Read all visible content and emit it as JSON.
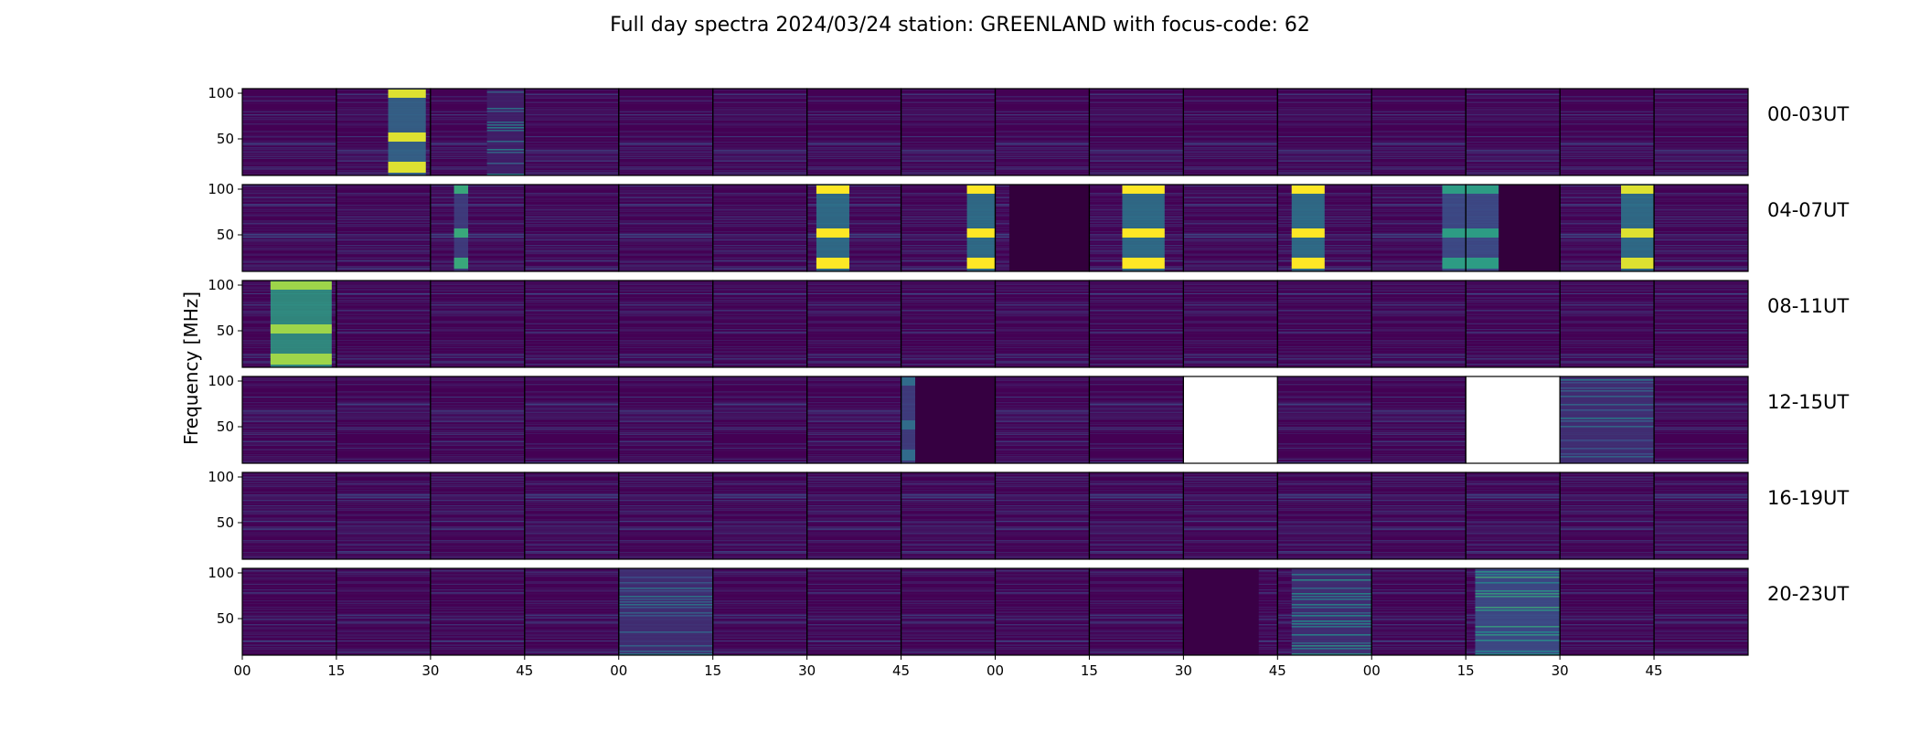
{
  "chart_data": {
    "type": "heatmap",
    "title": "Full day spectra 2024/03/24 station: GREENLAND with focus-code: 62",
    "ylabel": "Frequency [MHz]",
    "xlabel": "",
    "y_ticks": [
      "100",
      "50"
    ],
    "y_tick_values": [
      100,
      50
    ],
    "ylim": [
      10,
      105
    ],
    "x_tick_labels": [
      "00",
      "15",
      "30",
      "45",
      "00",
      "15",
      "30",
      "45",
      "00",
      "15",
      "30",
      "45",
      "00",
      "15",
      "30",
      "45"
    ],
    "panels_per_row": 16,
    "colormap": [
      "#440154",
      "#3b528b",
      "#21918c",
      "#5ec962",
      "#fde725"
    ],
    "rows": [
      {
        "label": "00-03UT",
        "features": [
          {
            "panel": 1,
            "from": 0.55,
            "to": 0.95,
            "band_level": 0.95,
            "bg_level": 0.35,
            "banded": true
          },
          {
            "panel": 2,
            "from": 0.6,
            "to": 1.0,
            "band_level": 0.3,
            "bg_level": 0.1,
            "banded": false
          }
        ],
        "missing": []
      },
      {
        "label": "04-07UT",
        "features": [
          {
            "panel": 2,
            "from": 0.25,
            "to": 0.4,
            "band_level": 0.6,
            "bg_level": 0.2,
            "banded": true
          },
          {
            "panel": 6,
            "from": 0.1,
            "to": 0.45,
            "band_level": 1.0,
            "bg_level": 0.4,
            "banded": true
          },
          {
            "panel": 7,
            "from": 0.7,
            "to": 1.0,
            "band_level": 1.0,
            "bg_level": 0.4,
            "banded": true
          },
          {
            "panel": 8,
            "from": 0.15,
            "to": 1.0,
            "band_level": -0.3,
            "bg_level": -0.3,
            "banded": false
          },
          {
            "panel": 9,
            "from": 0.35,
            "to": 0.8,
            "band_level": 1.0,
            "bg_level": 0.4,
            "banded": true
          },
          {
            "panel": 11,
            "from": 0.15,
            "to": 0.5,
            "band_level": 1.0,
            "bg_level": 0.4,
            "banded": true
          },
          {
            "panel": 12,
            "from": 0.75,
            "to": 1.0,
            "band_level": 0.55,
            "bg_level": 0.25,
            "banded": true
          },
          {
            "panel": 13,
            "from": 0.0,
            "to": 0.35,
            "band_level": 0.55,
            "bg_level": 0.25,
            "banded": true
          },
          {
            "panel": 13,
            "from": 0.35,
            "to": 1.0,
            "band_level": -0.3,
            "bg_level": -0.3,
            "banded": false
          },
          {
            "panel": 14,
            "from": 0.65,
            "to": 1.0,
            "band_level": 0.95,
            "bg_level": 0.4,
            "banded": true
          }
        ],
        "missing": []
      },
      {
        "label": "08-11UT",
        "features": [
          {
            "panel": 0,
            "from": 0.3,
            "to": 0.95,
            "band_level": 0.85,
            "bg_level": 0.55,
            "banded": true
          }
        ],
        "missing": []
      },
      {
        "label": "12-15UT",
        "features": [
          {
            "panel": 7,
            "from": 0.0,
            "to": 0.15,
            "band_level": 0.35,
            "bg_level": 0.2,
            "banded": true
          },
          {
            "panel": 7,
            "from": 0.15,
            "to": 1.0,
            "band_level": -0.2,
            "bg_level": -0.2,
            "banded": false
          },
          {
            "panel": 14,
            "from": 0.0,
            "to": 1.0,
            "band_level": 0.25,
            "bg_level": 0.15,
            "banded": false
          }
        ],
        "missing": [
          10,
          13
        ]
      },
      {
        "label": "16-19UT",
        "features": [],
        "missing": []
      },
      {
        "label": "20-23UT",
        "features": [
          {
            "panel": 4,
            "from": 0.0,
            "to": 1.0,
            "band_level": 0.25,
            "bg_level": 0.15,
            "banded": false
          },
          {
            "panel": 10,
            "from": 0.0,
            "to": 0.8,
            "band_level": 0.0,
            "bg_level": -0.1,
            "banded": false
          },
          {
            "panel": 11,
            "from": 0.15,
            "to": 1.0,
            "band_level": 0.35,
            "bg_level": 0.15,
            "banded": false
          },
          {
            "panel": 13,
            "from": 0.1,
            "to": 1.0,
            "band_level": 0.45,
            "bg_level": 0.25,
            "banded": false
          }
        ],
        "missing": []
      }
    ]
  }
}
